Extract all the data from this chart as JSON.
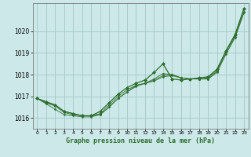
{
  "title": "Graphe pression niveau de la mer (hPa)",
  "bg_color": "#cce8e8",
  "grid_color": "#aacccc",
  "line_color": "#2d6e2d",
  "marker_color": "#2d6e2d",
  "xlim": [
    -0.5,
    23.5
  ],
  "ylim": [
    1015.5,
    1021.3
  ],
  "yticks": [
    1016,
    1017,
    1018,
    1019,
    1020
  ],
  "xticks": [
    0,
    1,
    2,
    3,
    4,
    5,
    6,
    7,
    8,
    9,
    10,
    11,
    12,
    13,
    14,
    15,
    16,
    17,
    18,
    19,
    20,
    21,
    22,
    23
  ],
  "series1": [
    1016.9,
    1016.7,
    1016.6,
    1016.3,
    1016.2,
    1016.1,
    1016.1,
    1016.15,
    1016.5,
    1016.9,
    1017.2,
    1017.5,
    1017.6,
    1017.8,
    1018.05,
    1018.0,
    1017.85,
    1017.8,
    1017.8,
    1017.85,
    1018.2,
    1019.1,
    1019.8,
    1021.05
  ],
  "series2": [
    1016.9,
    1016.7,
    1016.55,
    1016.25,
    1016.15,
    1016.1,
    1016.1,
    1016.2,
    1016.6,
    1017.0,
    1017.3,
    1017.5,
    1017.6,
    1017.75,
    1017.95,
    1018.0,
    1017.85,
    1017.8,
    1017.8,
    1017.8,
    1018.15,
    1019.0,
    1019.75,
    1020.9
  ],
  "series3": [
    1016.9,
    1016.65,
    1016.4,
    1016.15,
    1016.1,
    1016.05,
    1016.05,
    1016.15,
    1016.5,
    1016.9,
    1017.2,
    1017.45,
    1017.6,
    1017.7,
    1017.9,
    1017.95,
    1017.85,
    1017.8,
    1017.8,
    1017.8,
    1018.1,
    1018.95,
    1019.7,
    1020.85
  ],
  "series4": [
    1016.9,
    1016.75,
    1016.6,
    1016.3,
    1016.2,
    1016.1,
    1016.1,
    1016.3,
    1016.7,
    1017.1,
    1017.4,
    1017.6,
    1017.75,
    1018.1,
    1018.5,
    1017.8,
    1017.75,
    1017.8,
    1017.85,
    1017.9,
    1018.25,
    1019.1,
    1019.85,
    1021.05
  ]
}
